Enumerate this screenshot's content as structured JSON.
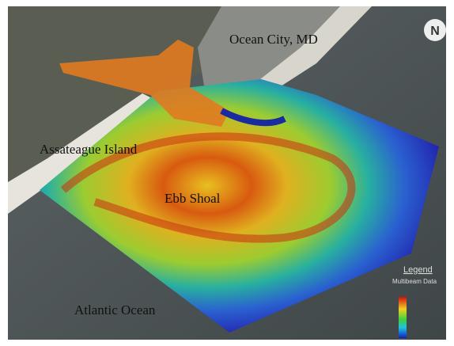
{
  "labels": {
    "city": "Ocean City, MD",
    "island": "Assateague Island",
    "shoal": "Ebb Shoal",
    "ocean": "Atlantic Ocean"
  },
  "legend": {
    "title": "Legend",
    "subtitle": "Multibeam Data"
  },
  "compass": "N"
}
